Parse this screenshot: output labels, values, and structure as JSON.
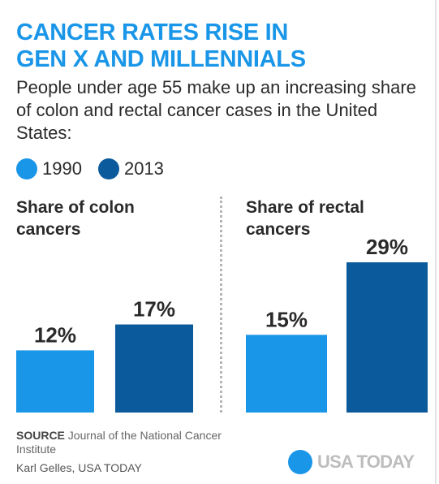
{
  "title": {
    "line1": "CANCER RATES RISE IN",
    "line2": "GEN X AND MILLENNIALS"
  },
  "subtitle": "People under age 55 make up an increasing share of colon and rectal cancer cases in the United States:",
  "legend": [
    {
      "label": "1990",
      "color": "#1a96e8"
    },
    {
      "label": "2013",
      "color": "#0b5a9c"
    }
  ],
  "colors": {
    "title": "#1a96e8",
    "series_1990": "#1a96e8",
    "series_2013": "#0b5a9c",
    "logo": "#1a96e8"
  },
  "chart_data": [
    {
      "type": "bar",
      "title_line1": "Share of colon",
      "title_line2": "cancers",
      "categories": [
        "1990",
        "2013"
      ],
      "values": [
        12,
        17
      ],
      "labels": [
        "12%",
        "17%"
      ],
      "colors": [
        "#1a96e8",
        "#0b5a9c"
      ]
    },
    {
      "type": "bar",
      "title_line1": "Share of rectal",
      "title_line2": "cancers",
      "categories": [
        "1990",
        "2013"
      ],
      "values": [
        15,
        29
      ],
      "labels": [
        "15%",
        "29%"
      ],
      "colors": [
        "#1a96e8",
        "#0b5a9c"
      ]
    }
  ],
  "source": {
    "label": "SOURCE",
    "text": "Journal of the National Cancer Institute"
  },
  "credit": "Karl Gelles, USA TODAY",
  "logo_text": "USA TODAY"
}
